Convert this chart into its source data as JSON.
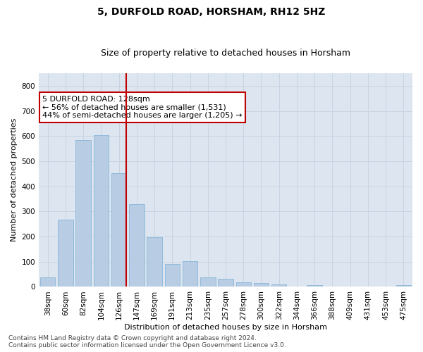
{
  "title": "5, DURFOLD ROAD, HORSHAM, RH12 5HZ",
  "subtitle": "Size of property relative to detached houses in Horsham",
  "xlabel": "Distribution of detached houses by size in Horsham",
  "ylabel": "Number of detached properties",
  "categories": [
    "38sqm",
    "60sqm",
    "82sqm",
    "104sqm",
    "126sqm",
    "147sqm",
    "169sqm",
    "191sqm",
    "213sqm",
    "235sqm",
    "257sqm",
    "278sqm",
    "300sqm",
    "322sqm",
    "344sqm",
    "366sqm",
    "388sqm",
    "409sqm",
    "431sqm",
    "453sqm",
    "475sqm"
  ],
  "values": [
    38,
    267,
    585,
    603,
    453,
    330,
    198,
    90,
    101,
    38,
    31,
    17,
    15,
    11,
    0,
    8,
    0,
    0,
    0,
    0,
    8
  ],
  "bar_color": "#b8cce4",
  "bar_edge_color": "#7ab0d4",
  "vline_color": "#c00000",
  "annotation_text": "5 DURFOLD ROAD: 128sqm\n← 56% of detached houses are smaller (1,531)\n44% of semi-detached houses are larger (1,205) →",
  "annotation_box_color": "#ffffff",
  "annotation_box_edge_color": "#c00000",
  "ylim": [
    0,
    850
  ],
  "yticks": [
    0,
    100,
    200,
    300,
    400,
    500,
    600,
    700,
    800
  ],
  "grid_color": "#c8d4e4",
  "background_color": "#dde6f0",
  "footer_text": "Contains HM Land Registry data © Crown copyright and database right 2024.\nContains public sector information licensed under the Open Government Licence v3.0.",
  "title_fontsize": 10,
  "subtitle_fontsize": 9,
  "axis_label_fontsize": 8,
  "tick_fontsize": 7.5,
  "annotation_fontsize": 8,
  "footer_fontsize": 6.5
}
